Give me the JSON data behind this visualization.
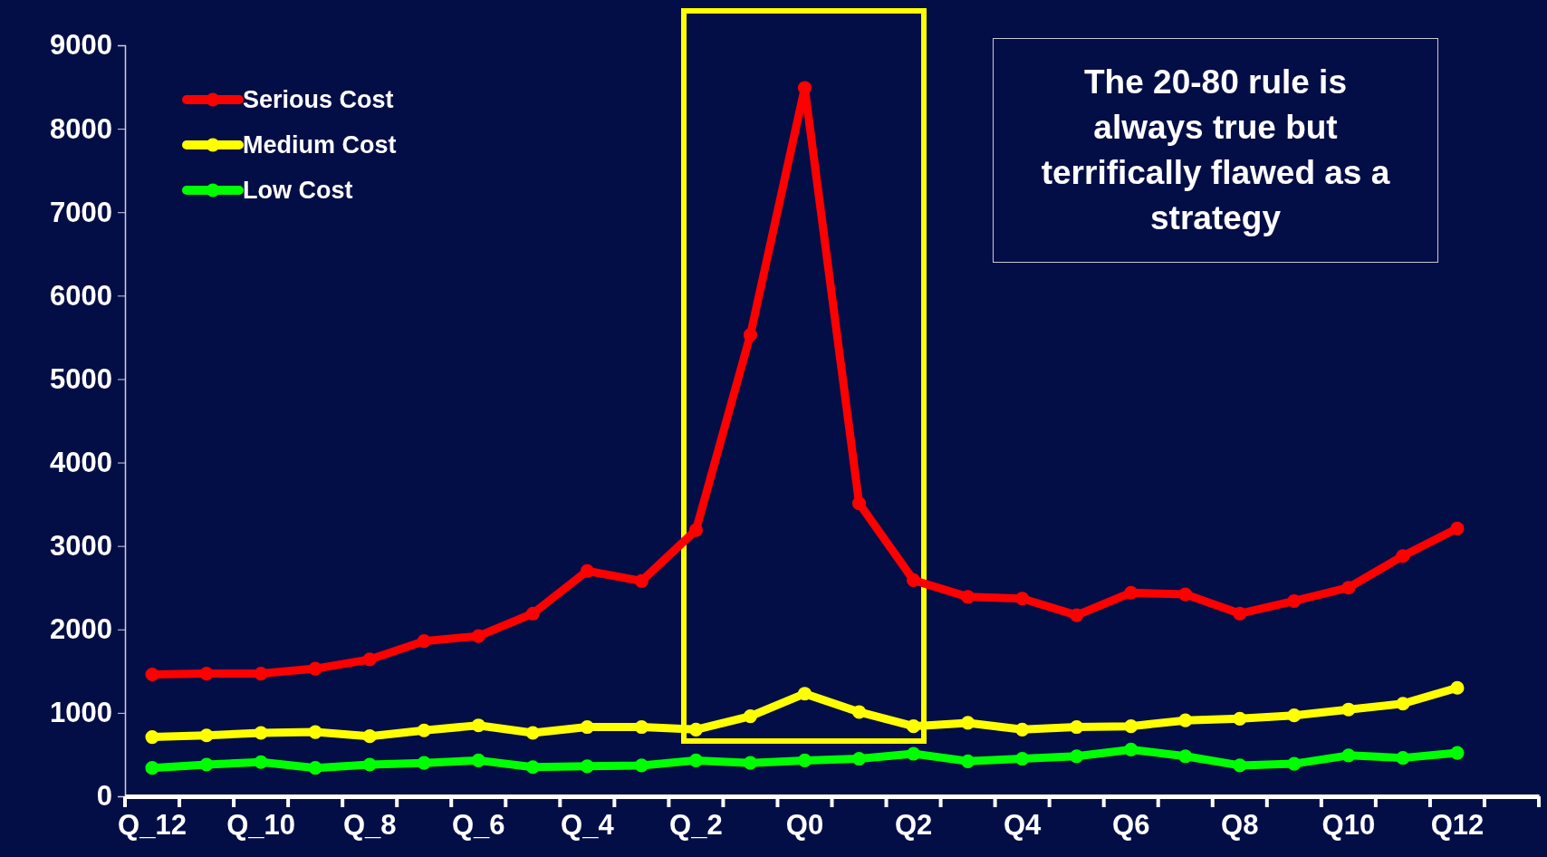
{
  "chart_data": {
    "type": "line",
    "categories": [
      "Q_12",
      null,
      "Q_10",
      null,
      "Q_8",
      null,
      "Q_6",
      null,
      "Q_4",
      null,
      "Q_2",
      null,
      "Q0",
      null,
      "Q2",
      null,
      "Q4",
      null,
      "Q6",
      null,
      "Q8",
      null,
      "Q10",
      null,
      "Q12",
      null
    ],
    "series": [
      {
        "name": "Serious Cost",
        "color": "#ff0000",
        "values": [
          1460,
          1470,
          1470,
          1530,
          1640,
          1860,
          1920,
          2190,
          2700,
          2580,
          3190,
          5530,
          8490,
          3510,
          2590,
          2390,
          2370,
          2170,
          2440,
          2420,
          2190,
          2340,
          2500,
          2880,
          3210,
          null
        ]
      },
      {
        "name": "Medium Cost",
        "color": "#ffff00",
        "values": [
          710,
          730,
          760,
          770,
          720,
          790,
          850,
          760,
          830,
          830,
          800,
          960,
          1230,
          1010,
          840,
          880,
          800,
          830,
          840,
          910,
          930,
          970,
          1040,
          1110,
          1300,
          null
        ]
      },
      {
        "name": "Low Cost",
        "color": "#00ff00",
        "values": [
          340,
          380,
          410,
          340,
          380,
          400,
          430,
          350,
          360,
          370,
          430,
          400,
          430,
          450,
          510,
          420,
          450,
          480,
          560,
          480,
          370,
          390,
          490,
          460,
          520,
          null
        ]
      }
    ],
    "ylim": [
      0,
      9000
    ],
    "yticks": [
      0,
      1000,
      2000,
      3000,
      4000,
      5000,
      6000,
      7000,
      8000,
      9000
    ],
    "grid": false,
    "legend": "top left",
    "marker": "circle",
    "line_style": "solid",
    "annotations": [
      "The 20-80 rule is always true but terrifically flawed as a strategy"
    ]
  }
}
